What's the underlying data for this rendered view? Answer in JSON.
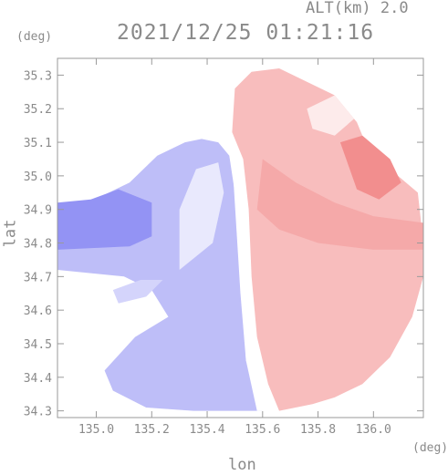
{
  "header": {
    "altitude_label": "ALT(km) 2.0",
    "timestamp": "2021/12/25 01:21:16"
  },
  "chart_data": {
    "type": "heatmap",
    "title": "2021/12/25 01:21:16",
    "subtitle": "ALT(km) 2.0",
    "xlabel": "lon",
    "ylabel": "lat",
    "x_unit": "(deg)",
    "y_unit": "(deg)",
    "xlim": [
      134.86,
      136.18
    ],
    "ylim": [
      34.28,
      35.35
    ],
    "x_ticks": [
      135.0,
      135.2,
      135.4,
      135.6,
      135.8,
      136.0
    ],
    "x_tick_labels": [
      "135.0",
      "135.2",
      "135.4",
      "135.6",
      "135.8",
      "136.0"
    ],
    "y_ticks": [
      34.3,
      34.4,
      34.5,
      34.6,
      34.7,
      34.8,
      34.9,
      35.0,
      35.1,
      35.2,
      35.3
    ],
    "y_tick_labels": [
      "34.3",
      "34.4",
      "34.5",
      "34.6",
      "34.7",
      "34.8",
      "34.9",
      "35.0",
      "35.1",
      "35.2",
      "35.3"
    ],
    "grid": false,
    "colors": {
      "negative": "#6f6ff0",
      "zero": "#ffffff",
      "positive": "#f07a7a",
      "axis": "#9a9a9a"
    },
    "regions": [
      {
        "name": "west-bulk",
        "points": [
          [
            135.02,
            34.94
          ],
          [
            135.12,
            34.98
          ],
          [
            135.22,
            35.06
          ],
          [
            135.32,
            35.1
          ],
          [
            135.38,
            35.11
          ],
          [
            135.44,
            35.1
          ],
          [
            135.48,
            35.06
          ],
          [
            135.5,
            34.95
          ],
          [
            135.52,
            34.8
          ],
          [
            135.53,
            34.6
          ],
          [
            135.54,
            34.45
          ],
          [
            135.58,
            34.36
          ],
          [
            135.6,
            34.3
          ],
          [
            135.35,
            34.3
          ],
          [
            135.18,
            34.31
          ],
          [
            135.06,
            34.36
          ],
          [
            135.03,
            34.42
          ],
          [
            135.14,
            34.52
          ],
          [
            135.26,
            34.58
          ],
          [
            135.2,
            34.66
          ],
          [
            135.1,
            34.7
          ],
          [
            134.86,
            34.72
          ],
          [
            134.86,
            34.87
          ],
          [
            134.98,
            34.88
          ]
        ],
        "value": -0.45
      },
      {
        "name": "west-strong-band",
        "points": [
          [
            134.86,
            34.78
          ],
          [
            135.12,
            34.79
          ],
          [
            135.2,
            34.82
          ],
          [
            135.2,
            34.92
          ],
          [
            135.08,
            34.96
          ],
          [
            134.98,
            34.93
          ],
          [
            134.86,
            34.92
          ]
        ],
        "value": -0.75
      },
      {
        "name": "west-light-core",
        "points": [
          [
            135.3,
            34.72
          ],
          [
            135.42,
            34.8
          ],
          [
            135.46,
            34.95
          ],
          [
            135.44,
            35.04
          ],
          [
            135.36,
            35.02
          ],
          [
            135.3,
            34.9
          ]
        ],
        "value": -0.15
      },
      {
        "name": "near-zero-strip",
        "points": [
          [
            135.49,
            35.05
          ],
          [
            135.54,
            35.05
          ],
          [
            135.55,
            34.8
          ],
          [
            135.56,
            34.6
          ],
          [
            135.62,
            34.42
          ],
          [
            135.64,
            34.3
          ],
          [
            135.58,
            34.3
          ],
          [
            135.54,
            34.45
          ],
          [
            135.52,
            34.65
          ]
        ],
        "value": 0.0
      },
      {
        "name": "southwest-arm",
        "points": [
          [
            135.06,
            34.66
          ],
          [
            135.16,
            34.69
          ],
          [
            135.24,
            34.69
          ],
          [
            135.18,
            34.64
          ],
          [
            135.08,
            34.62
          ]
        ],
        "value": -0.3
      },
      {
        "name": "east-bulk",
        "points": [
          [
            135.49,
            35.13
          ],
          [
            135.5,
            35.26
          ],
          [
            135.56,
            35.31
          ],
          [
            135.66,
            35.32
          ],
          [
            135.76,
            35.28
          ],
          [
            135.86,
            35.24
          ],
          [
            135.94,
            35.16
          ],
          [
            135.98,
            35.08
          ],
          [
            136.06,
            35.02
          ],
          [
            136.16,
            34.95
          ],
          [
            136.18,
            34.8
          ],
          [
            136.18,
            34.7
          ],
          [
            136.14,
            34.58
          ],
          [
            136.06,
            34.46
          ],
          [
            135.96,
            34.38
          ],
          [
            135.86,
            34.34
          ],
          [
            135.78,
            34.32
          ],
          [
            135.66,
            34.3
          ],
          [
            135.62,
            34.38
          ],
          [
            135.58,
            34.52
          ],
          [
            135.56,
            34.7
          ],
          [
            135.55,
            34.9
          ],
          [
            135.53,
            35.05
          ]
        ],
        "value": 0.5
      },
      {
        "name": "east-strong-band",
        "points": [
          [
            135.6,
            35.05
          ],
          [
            135.72,
            34.98
          ],
          [
            135.86,
            34.92
          ],
          [
            136.0,
            34.88
          ],
          [
            136.18,
            34.86
          ],
          [
            136.18,
            34.78
          ],
          [
            136.0,
            34.78
          ],
          [
            135.8,
            34.8
          ],
          [
            135.66,
            34.84
          ],
          [
            135.58,
            34.9
          ]
        ],
        "value": 0.65
      },
      {
        "name": "east-ne-patch",
        "points": [
          [
            135.88,
            35.1
          ],
          [
            135.96,
            35.12
          ],
          [
            136.06,
            35.05
          ],
          [
            136.1,
            34.98
          ],
          [
            136.02,
            34.93
          ],
          [
            135.94,
            34.96
          ]
        ],
        "value": 0.85
      },
      {
        "name": "north-patch",
        "points": [
          [
            135.76,
            35.2
          ],
          [
            135.86,
            35.24
          ],
          [
            135.93,
            35.17
          ],
          [
            135.86,
            35.12
          ],
          [
            135.78,
            35.14
          ]
        ],
        "value": 0.15
      }
    ],
    "colorbar": false
  }
}
